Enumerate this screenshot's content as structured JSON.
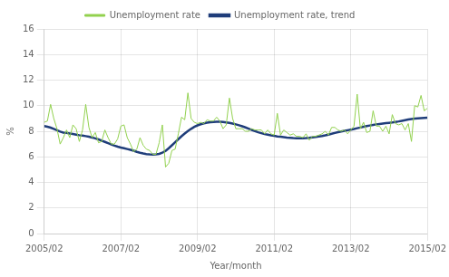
{
  "chart_data": {
    "type": "line",
    "xlabel": "Year/month",
    "ylabel": "%",
    "categories": [
      "2005/02",
      null,
      null,
      null,
      null,
      null,
      null,
      null,
      null,
      null,
      null,
      null,
      null,
      null,
      null,
      null,
      null,
      null,
      null,
      null,
      null,
      null,
      null,
      null,
      "2007/02",
      null,
      null,
      null,
      null,
      null,
      null,
      null,
      null,
      null,
      null,
      null,
      null,
      null,
      null,
      null,
      null,
      null,
      null,
      null,
      null,
      null,
      null,
      null,
      "2009/02",
      null,
      null,
      null,
      null,
      null,
      null,
      null,
      null,
      null,
      null,
      null,
      null,
      null,
      null,
      null,
      null,
      null,
      null,
      null,
      null,
      null,
      null,
      null,
      "2011/02",
      null,
      null,
      null,
      null,
      null,
      null,
      null,
      null,
      null,
      null,
      null,
      null,
      null,
      null,
      null,
      null,
      null,
      null,
      null,
      null,
      null,
      null,
      null,
      "2013/02",
      null,
      null,
      null,
      null,
      null,
      null,
      null,
      null,
      null,
      null,
      null,
      null,
      null,
      null,
      null,
      null,
      null,
      null,
      null,
      null,
      null,
      null,
      null,
      "2015/02"
    ],
    "series": [
      {
        "name": "Unemployment rate",
        "color": "#92d14f",
        "values": [
          8.7,
          8.8,
          10.1,
          9.0,
          8.2,
          7.0,
          7.5,
          8.1,
          7.5,
          8.5,
          8.2,
          7.2,
          8.1,
          10.1,
          8.3,
          7.5,
          7.9,
          7.1,
          7.2,
          8.1,
          7.5,
          7.0,
          7.0,
          7.4,
          8.4,
          8.5,
          7.5,
          7.0,
          6.4,
          6.6,
          7.5,
          6.9,
          6.6,
          6.5,
          6.2,
          6.2,
          7.1,
          8.5,
          5.2,
          5.5,
          6.5,
          6.6,
          7.8,
          9.1,
          8.9,
          11.0,
          9.0,
          8.7,
          8.6,
          8.7,
          8.6,
          8.9,
          8.8,
          8.8,
          9.1,
          8.8,
          8.2,
          8.5,
          10.6,
          9.0,
          8.2,
          8.2,
          8.2,
          8.0,
          8.0,
          8.2,
          8.1,
          8.1,
          8.1,
          7.8,
          8.1,
          7.8,
          7.7,
          9.4,
          7.7,
          8.1,
          7.9,
          7.7,
          7.8,
          7.6,
          7.6,
          7.5,
          7.8,
          7.3,
          7.6,
          7.6,
          7.7,
          7.8,
          8.0,
          7.7,
          8.3,
          8.3,
          8.1,
          8.0,
          8.1,
          7.8,
          8.1,
          8.4,
          10.9,
          8.2,
          8.7,
          7.9,
          8.0,
          9.6,
          8.4,
          8.4,
          8.0,
          8.4,
          7.8,
          9.3,
          8.6,
          8.5,
          8.6,
          8.1,
          8.6,
          7.2,
          10.0,
          9.9,
          10.8,
          9.6,
          9.8
        ]
      },
      {
        "name": "Unemployment rate, trend",
        "color": "#1f3d7a",
        "values": [
          8.4,
          8.35,
          8.28,
          8.18,
          8.08,
          7.97,
          7.9,
          7.87,
          7.83,
          7.79,
          7.74,
          7.69,
          7.66,
          7.62,
          7.57,
          7.51,
          7.44,
          7.36,
          7.27,
          7.17,
          7.07,
          6.97,
          6.88,
          6.8,
          6.73,
          6.67,
          6.61,
          6.55,
          6.48,
          6.39,
          6.32,
          6.26,
          6.22,
          6.19,
          6.18,
          6.19,
          6.23,
          6.32,
          6.47,
          6.67,
          6.9,
          7.14,
          7.38,
          7.61,
          7.82,
          8.02,
          8.19,
          8.34,
          8.46,
          8.55,
          8.62,
          8.67,
          8.7,
          8.73,
          8.74,
          8.74,
          8.72,
          8.69,
          8.65,
          8.6,
          8.54,
          8.47,
          8.39,
          8.3,
          8.2,
          8.1,
          8.01,
          7.92,
          7.85,
          7.78,
          7.73,
          7.68,
          7.64,
          7.6,
          7.57,
          7.54,
          7.51,
          7.49,
          7.47,
          7.46,
          7.46,
          7.46,
          7.47,
          7.49,
          7.52,
          7.55,
          7.59,
          7.63,
          7.68,
          7.74,
          7.8,
          7.87,
          7.93,
          7.98,
          8.03,
          8.08,
          8.13,
          8.18,
          8.24,
          8.29,
          8.35,
          8.4,
          8.45,
          8.5,
          8.54,
          8.57,
          8.6,
          8.63,
          8.66,
          8.69,
          8.73,
          8.77,
          8.82,
          8.87,
          8.92,
          8.96,
          8.99,
          9.01,
          9.03,
          9.05,
          9.07
        ]
      }
    ],
    "ylim": [
      0,
      16
    ],
    "yticks": [
      0,
      2,
      4,
      6,
      8,
      10,
      12,
      14,
      16
    ],
    "grid": true,
    "legend": "top"
  }
}
